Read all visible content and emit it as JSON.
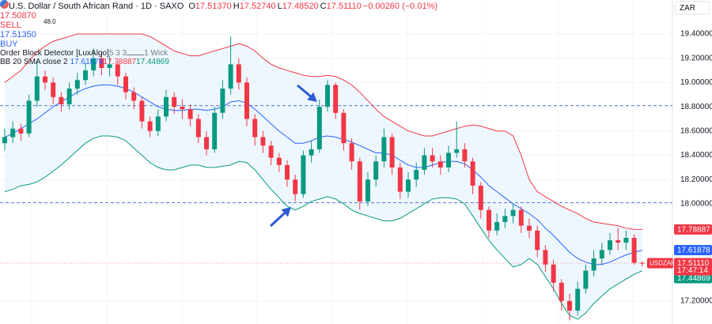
{
  "header": {
    "title": "U.S. Dollar / South African Rand · 1D · SAXO",
    "ohlc": [
      {
        "key": "O",
        "value": "17.51370"
      },
      {
        "key": "H",
        "value": "17.52740"
      },
      {
        "key": "L",
        "value": "17.48520"
      },
      {
        "key": "C",
        "value": "17.51110"
      }
    ],
    "change": "−0.00260 (−0.01%)",
    "sell": {
      "price": "17.50870",
      "label": "SELL"
    },
    "spread": "48.0",
    "buy": {
      "price": "17.51350",
      "label": "BUY"
    },
    "currency": "ZAR"
  },
  "indicators": [
    {
      "name": "Order Block Detector [LuxAlgo]",
      "params": "5 3 3",
      "style": "1 Wick"
    },
    {
      "name": "BB 20 SMA close 2",
      "values": [
        {
          "text": "17.61878",
          "color": "#2962ff"
        },
        {
          "text": "17.78887",
          "color": "#f23645"
        },
        {
          "text": "17.44869",
          "color": "#089981"
        }
      ]
    }
  ],
  "chart_data": {
    "type": "candlestick",
    "up_color": "#089981",
    "down_color": "#f23645",
    "open": [
      18.5,
      18.55,
      18.62,
      18.58,
      18.85,
      19.05,
      19.0,
      18.88,
      18.82,
      18.95,
      19.02,
      19.1,
      19.2,
      19.12,
      19.15,
      19.05,
      18.92,
      18.85,
      18.68,
      18.6,
      18.72,
      18.88,
      18.8,
      18.78,
      18.7,
      18.55,
      18.45,
      18.75,
      18.95,
      19.15,
      19.0,
      18.7,
      18.55,
      18.48,
      18.38,
      18.32,
      18.2,
      18.08,
      18.4,
      18.45,
      18.8,
      18.98,
      18.75,
      18.5,
      18.35,
      18.02,
      18.2,
      18.35,
      18.55,
      18.3,
      18.1,
      18.2,
      18.28,
      18.4,
      18.35,
      18.3,
      18.42,
      18.45,
      18.35,
      18.15,
      17.95,
      17.78,
      17.85,
      17.9,
      17.95,
      17.82,
      17.78,
      17.62,
      17.5,
      17.35,
      17.2,
      17.12,
      17.3,
      17.45,
      17.55,
      17.62,
      17.7,
      17.68,
      17.72,
      17.5137
    ],
    "high": [
      18.62,
      18.68,
      18.66,
      18.9,
      19.18,
      19.1,
      19.04,
      18.92,
      19.0,
      19.08,
      19.16,
      19.28,
      19.25,
      19.22,
      19.18,
      19.08,
      18.96,
      18.88,
      18.72,
      18.78,
      18.94,
      18.92,
      18.86,
      18.82,
      18.74,
      18.6,
      18.8,
      19.02,
      19.38,
      19.2,
      19.04,
      18.74,
      18.6,
      18.52,
      18.42,
      18.36,
      18.24,
      18.44,
      18.52,
      18.86,
      19.02,
      19.0,
      18.78,
      18.54,
      18.38,
      18.26,
      18.4,
      18.62,
      18.58,
      18.34,
      18.26,
      18.34,
      18.46,
      18.46,
      18.4,
      18.48,
      18.68,
      18.5,
      18.38,
      18.18,
      17.98,
      17.92,
      17.96,
      18.0,
      17.98,
      17.88,
      17.82,
      17.66,
      17.54,
      17.38,
      17.26,
      17.36,
      17.5,
      17.62,
      17.68,
      17.76,
      17.8,
      17.78,
      17.75,
      17.5274
    ],
    "low": [
      18.44,
      18.5,
      18.52,
      18.55,
      18.8,
      18.94,
      18.82,
      18.76,
      18.78,
      18.9,
      18.98,
      19.05,
      19.06,
      19.05,
      18.98,
      18.86,
      18.78,
      18.62,
      18.55,
      18.56,
      18.68,
      18.74,
      18.7,
      18.64,
      18.5,
      18.4,
      18.42,
      18.7,
      18.9,
      18.94,
      18.64,
      18.48,
      18.42,
      18.32,
      18.26,
      18.14,
      18.02,
      18.05,
      18.34,
      18.42,
      18.76,
      18.7,
      18.44,
      18.28,
      17.95,
      17.98,
      18.14,
      18.3,
      18.24,
      18.04,
      18.05,
      18.14,
      18.24,
      18.3,
      18.24,
      18.26,
      18.38,
      18.3,
      18.08,
      17.88,
      17.72,
      17.74,
      17.8,
      17.84,
      17.76,
      17.72,
      17.56,
      17.44,
      17.28,
      17.12,
      17.04,
      17.08,
      17.26,
      17.4,
      17.5,
      17.58,
      17.62,
      17.62,
      17.5,
      17.4852
    ],
    "close": [
      18.55,
      18.62,
      18.58,
      18.85,
      19.05,
      19.0,
      18.88,
      18.82,
      18.95,
      19.02,
      19.1,
      19.2,
      19.12,
      19.15,
      19.05,
      18.92,
      18.85,
      18.68,
      18.6,
      18.72,
      18.88,
      18.8,
      18.78,
      18.7,
      18.55,
      18.45,
      18.75,
      18.95,
      19.15,
      19.0,
      18.7,
      18.55,
      18.48,
      18.38,
      18.32,
      18.2,
      18.08,
      18.4,
      18.45,
      18.8,
      18.98,
      18.75,
      18.5,
      18.35,
      18.02,
      18.2,
      18.35,
      18.55,
      18.3,
      18.1,
      18.2,
      18.28,
      18.4,
      18.35,
      18.3,
      18.42,
      18.45,
      18.35,
      18.15,
      17.95,
      17.78,
      17.85,
      17.9,
      17.95,
      17.82,
      17.78,
      17.62,
      17.5,
      17.35,
      17.2,
      17.12,
      17.3,
      17.45,
      17.55,
      17.62,
      17.7,
      17.68,
      17.72,
      17.5137,
      17.5111
    ],
    "series": [
      {
        "color": "#f23645",
        "values": [
          19.0,
          19.05,
          19.1,
          19.18,
          19.25,
          19.3,
          19.34,
          19.36,
          19.38,
          19.4,
          19.4,
          19.4,
          19.4,
          19.4,
          19.4,
          19.4,
          19.4,
          19.4,
          19.38,
          19.34,
          19.3,
          19.26,
          19.24,
          19.22,
          19.22,
          19.24,
          19.26,
          19.28,
          19.3,
          19.32,
          19.3,
          19.26,
          19.2,
          19.15,
          19.12,
          19.1,
          19.08,
          19.06,
          19.05,
          19.05,
          19.06,
          19.05,
          19.02,
          18.98,
          18.92,
          18.85,
          18.78,
          18.72,
          18.68,
          18.64,
          18.6,
          18.58,
          18.56,
          18.56,
          18.58,
          18.6,
          18.62,
          18.64,
          18.65,
          18.64,
          18.62,
          18.6,
          18.6,
          18.56,
          18.4,
          18.2,
          18.1,
          18.06,
          18.02,
          17.98,
          17.95,
          17.92,
          17.88,
          17.85,
          17.84,
          17.83,
          17.82,
          17.8,
          17.79,
          17.78887
        ]
      },
      {
        "color": "#2962ff",
        "values": [
          18.55,
          18.58,
          18.62,
          18.66,
          18.7,
          18.75,
          18.8,
          18.84,
          18.88,
          18.92,
          18.95,
          18.97,
          18.98,
          18.98,
          18.97,
          18.95,
          18.92,
          18.88,
          18.84,
          18.8,
          18.78,
          18.77,
          18.77,
          18.78,
          18.78,
          18.77,
          18.78,
          18.8,
          18.84,
          18.85,
          18.83,
          18.78,
          18.72,
          18.66,
          18.6,
          18.55,
          18.5,
          18.5,
          18.52,
          18.55,
          18.56,
          18.55,
          18.53,
          18.51,
          18.48,
          18.45,
          18.42,
          18.42,
          18.4,
          18.36,
          18.32,
          18.3,
          18.3,
          18.32,
          18.34,
          18.35,
          18.35,
          18.33,
          18.28,
          18.22,
          18.15,
          18.1,
          18.05,
          18.0,
          17.96,
          17.92,
          17.87,
          17.8,
          17.74,
          17.67,
          17.6,
          17.55,
          17.52,
          17.5,
          17.5,
          17.52,
          17.55,
          17.58,
          17.6,
          17.61878
        ]
      },
      {
        "color": "#089981",
        "values": [
          18.1,
          18.12,
          18.15,
          18.16,
          18.18,
          18.22,
          18.27,
          18.32,
          18.38,
          18.44,
          18.5,
          18.54,
          18.56,
          18.56,
          18.55,
          18.52,
          18.46,
          18.4,
          18.34,
          18.3,
          18.28,
          18.28,
          18.3,
          18.32,
          18.32,
          18.3,
          18.3,
          18.31,
          18.32,
          18.35,
          18.34,
          18.28,
          18.2,
          18.12,
          18.05,
          17.98,
          17.95,
          17.98,
          18.02,
          18.04,
          18.06,
          18.04,
          18.0,
          17.95,
          17.92,
          17.9,
          17.88,
          17.86,
          17.86,
          17.88,
          17.92,
          17.96,
          18.0,
          18.04,
          18.05,
          18.05,
          18.04,
          18.0,
          17.9,
          17.8,
          17.7,
          17.62,
          17.55,
          17.48,
          17.5,
          17.55,
          17.5,
          17.4,
          17.3,
          17.18,
          17.08,
          17.05,
          17.1,
          17.18,
          17.24,
          17.3,
          17.34,
          17.38,
          17.42,
          17.44869
        ]
      }
    ],
    "band_fill": "#e3f2fd",
    "levels": [
      18.81,
      18.01
    ],
    "level_color": "#5b7bd5",
    "last_price": {
      "symbol": "USDZAR",
      "value": 17.5111,
      "label": "17.51110",
      "countdown": "17:47:14",
      "color": "#f23645"
    },
    "price_badges": [
      {
        "value": 17.78887,
        "label": "17.78887",
        "color": "#f23645"
      },
      {
        "value": 17.61878,
        "label": "17.61878",
        "color": "#2962ff"
      },
      {
        "value": 17.44869,
        "label": "17.44869",
        "color": "#089981"
      }
    ],
    "ylim": [
      17.01,
      19.68
    ],
    "yticks": [
      {
        "value": 19.4,
        "label": "19.40000"
      },
      {
        "value": 19.2,
        "label": "19.20000"
      },
      {
        "value": 19.0,
        "label": "19.00000"
      },
      {
        "value": 18.8,
        "label": "18.80000"
      },
      {
        "value": 18.6,
        "label": "18.60000"
      },
      {
        "value": 18.4,
        "label": "18.40000"
      },
      {
        "value": 18.2,
        "label": "18.20000"
      },
      {
        "value": 18.0,
        "label": "18.00000"
      },
      {
        "value": 17.2,
        "label": "17.20000"
      }
    ],
    "grid": true
  }
}
